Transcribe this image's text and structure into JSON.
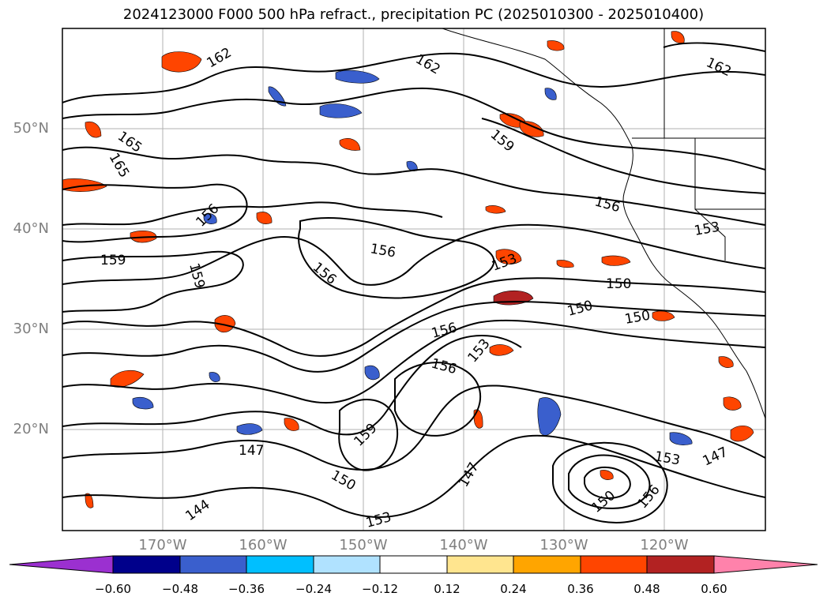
{
  "title": "2024123000 F000 500 hPa refract., precipitation PC (2025010300 - 2025010400)",
  "latitude_labels": [
    "50°N",
    "40°N",
    "30°N",
    "20°N"
  ],
  "longitude_labels": [
    "170°W",
    "160°W",
    "150°W",
    "140°W",
    "130°W",
    "120°W"
  ],
  "contour_labels": [
    "162",
    "165",
    "165",
    "162",
    "162",
    "159",
    "159",
    "156",
    "156",
    "156",
    "156",
    "153",
    "159",
    "153",
    "150",
    "150",
    "150",
    "156",
    "156",
    "153",
    "159",
    "147",
    "150",
    "147",
    "144",
    "153",
    "147",
    "150",
    "156",
    "153"
  ],
  "colorbar": {
    "ticks": [
      "−0.60",
      "−0.48",
      "−0.36",
      "−0.24",
      "−0.12",
      "0.12",
      "0.24",
      "0.36",
      "0.48",
      "0.60"
    ],
    "colors": [
      "#9b30d0",
      "#00008b",
      "#3a5fcd",
      "#00bfff",
      "#b0e2ff",
      "#ffffff",
      "#ffe58f",
      "#ffa500",
      "#ff4500",
      "#b22222",
      "#ff82ab"
    ]
  }
}
